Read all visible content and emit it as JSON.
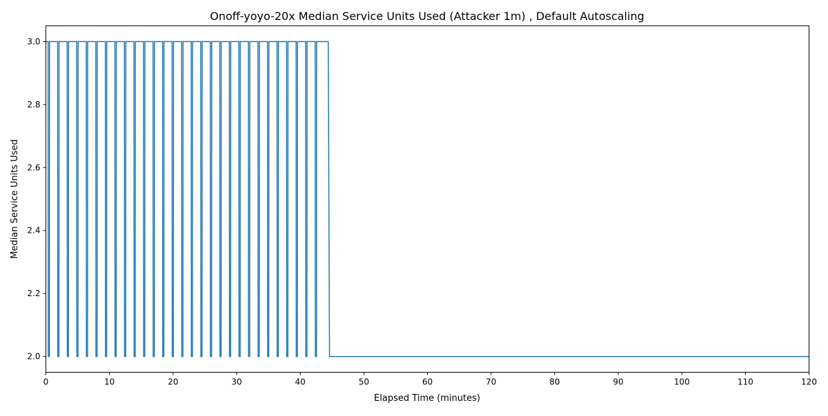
{
  "chart_data": {
    "type": "line",
    "title": "Onoff-yoyo-20x Median Service Units Used (Attacker 1m) , Default Autoscaling",
    "xlabel": "Elapsed Time (minutes)",
    "ylabel": "Median Service Units Used",
    "xlim": [
      0,
      120
    ],
    "ylim": [
      1.95,
      3.05
    ],
    "xticks": [
      0,
      10,
      20,
      30,
      40,
      50,
      60,
      70,
      80,
      90,
      100,
      110,
      120
    ],
    "yticks": [
      2.0,
      2.2,
      2.4,
      2.6,
      2.8,
      3.0
    ],
    "grid": false,
    "legend": "none",
    "line_color": "#1f77b4",
    "series": [
      {
        "pattern": "square-wave",
        "high_value": 3.0,
        "low_value": 2.0,
        "period_minutes": 1.5,
        "cycles": 29,
        "low_duration_minutes": 0.2,
        "cycles_end_minutes": 44.4,
        "final_drop_minutes": 44.6,
        "end_minutes": 120,
        "end_value": 2.0
      }
    ]
  }
}
